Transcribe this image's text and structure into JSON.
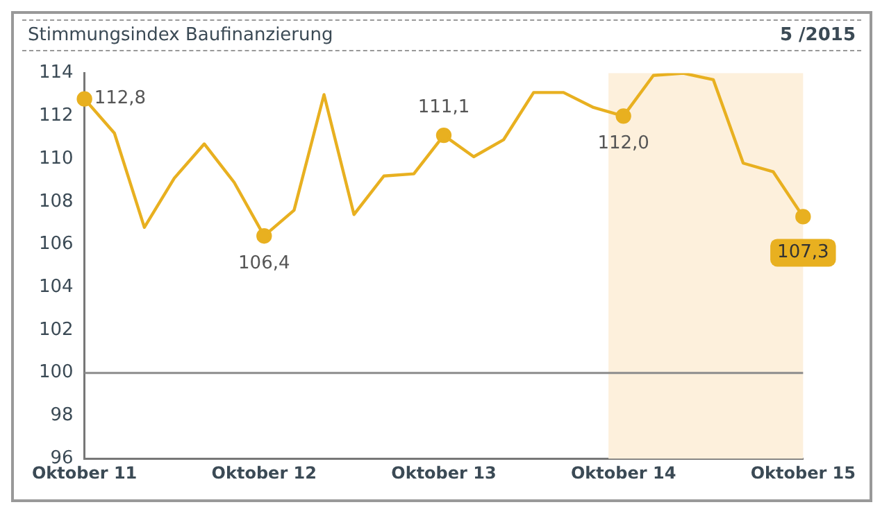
{
  "chart_data": {
    "type": "line",
    "title": "Stimmungsindex Baufinanzierung",
    "subtitle": "5 /2015",
    "categories": [
      "Oktober 11",
      null,
      null,
      null,
      null,
      null,
      "Oktober 12",
      null,
      null,
      null,
      null,
      null,
      "Oktober 13",
      null,
      null,
      null,
      null,
      null,
      "Oktober 14",
      null,
      null,
      null,
      null,
      null,
      "Oktober 15"
    ],
    "series": [
      {
        "color": "#e8b020",
        "values": [
          112.8,
          111.2,
          106.8,
          109.1,
          110.7,
          108.9,
          106.4,
          107.6,
          113.0,
          107.4,
          109.2,
          109.3,
          111.1,
          110.1,
          110.9,
          113.1,
          113.1,
          112.4,
          112.0,
          113.9,
          114.0,
          113.7,
          109.8,
          109.4,
          107.3
        ],
        "value_labels": [
          "112,8",
          null,
          null,
          null,
          null,
          null,
          "106,4",
          null,
          null,
          null,
          null,
          null,
          "111,1",
          null,
          null,
          null,
          null,
          null,
          "112,0",
          null,
          null,
          null,
          null,
          null,
          "107,3"
        ]
      }
    ],
    "ylim": [
      96,
      114
    ],
    "yticks": [
      96,
      98,
      100,
      102,
      104,
      106,
      108,
      110,
      112,
      114
    ],
    "ref_lines": [
      {
        "axis": "y",
        "value": 100,
        "color": "#8c8c8c"
      }
    ],
    "bands": [
      {
        "axis": "x",
        "from": "Oktober 14",
        "to": "Oktober 15",
        "color": "#fdf0dc"
      }
    ],
    "grid": false,
    "legend": false,
    "line_style": "solid"
  }
}
